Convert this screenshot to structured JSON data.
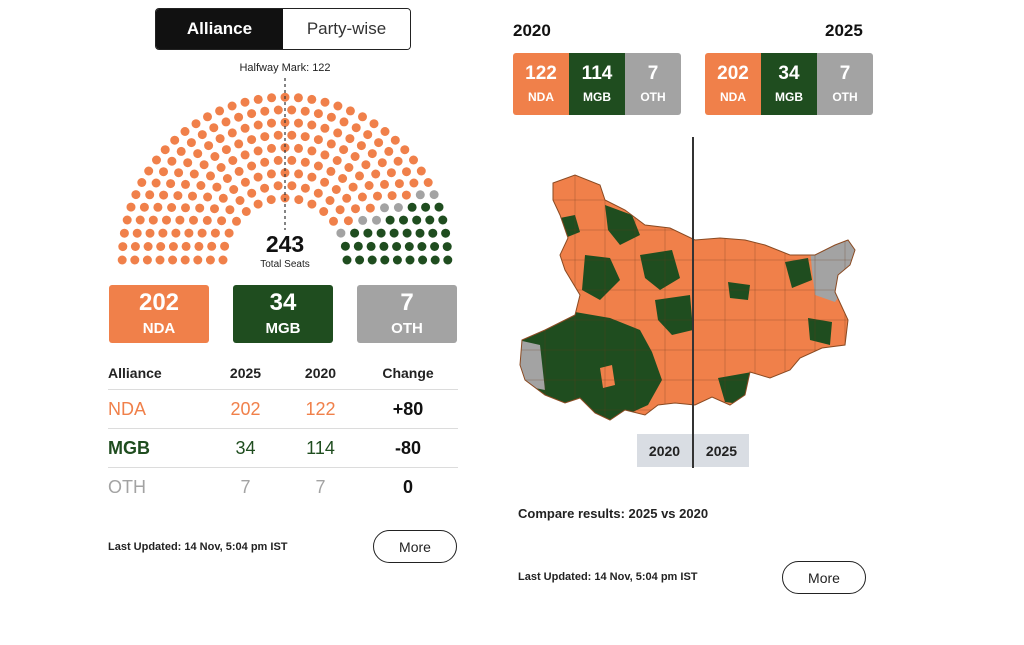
{
  "colors": {
    "nda": "#F0804A",
    "mgb": "#1F4D1F",
    "oth": "#A3A3A3",
    "dark": "#111111"
  },
  "toggle": {
    "alliance": "Alliance",
    "partywise": "Party-wise"
  },
  "hemicycle": {
    "halfway_label": "Halfway Mark: 122",
    "total": "243",
    "total_label": "Total Seats",
    "counts": {
      "nda": 202,
      "oth": 7,
      "mgb": 34
    }
  },
  "summary": [
    {
      "num": "202",
      "label": "NDA"
    },
    {
      "num": "34",
      "label": "MGB"
    },
    {
      "num": "7",
      "label": "OTH"
    }
  ],
  "table": {
    "headers": [
      "Alliance",
      "2025",
      "2020",
      "Change"
    ],
    "rows": [
      {
        "alliance": "NDA",
        "y2025": "202",
        "y2020": "122",
        "change": "+80"
      },
      {
        "alliance": "MGB",
        "y2025": "34",
        "y2020": "114",
        "change": "-80"
      },
      {
        "alliance": "OTH",
        "y2025": "7",
        "y2020": "7",
        "change": "0"
      }
    ]
  },
  "left_footer": {
    "updated": "Last Updated: 14 Nov, 5:04 pm IST",
    "more": "More"
  },
  "compare": {
    "year_left": "2020",
    "year_right": "2025",
    "left_boxes": [
      {
        "num": "122",
        "label": "NDA"
      },
      {
        "num": "114",
        "label": "MGB"
      },
      {
        "num": "7",
        "label": "OTH"
      }
    ],
    "right_boxes": [
      {
        "num": "202",
        "label": "NDA"
      },
      {
        "num": "34",
        "label": "MGB"
      },
      {
        "num": "7",
        "label": "OTH"
      }
    ],
    "slider_left": "2020",
    "slider_right": "2025",
    "caption": "Compare results: 2025 vs 2020"
  },
  "right_footer": {
    "updated": "Last Updated: 14 Nov, 5:04 pm IST",
    "more": "More"
  }
}
